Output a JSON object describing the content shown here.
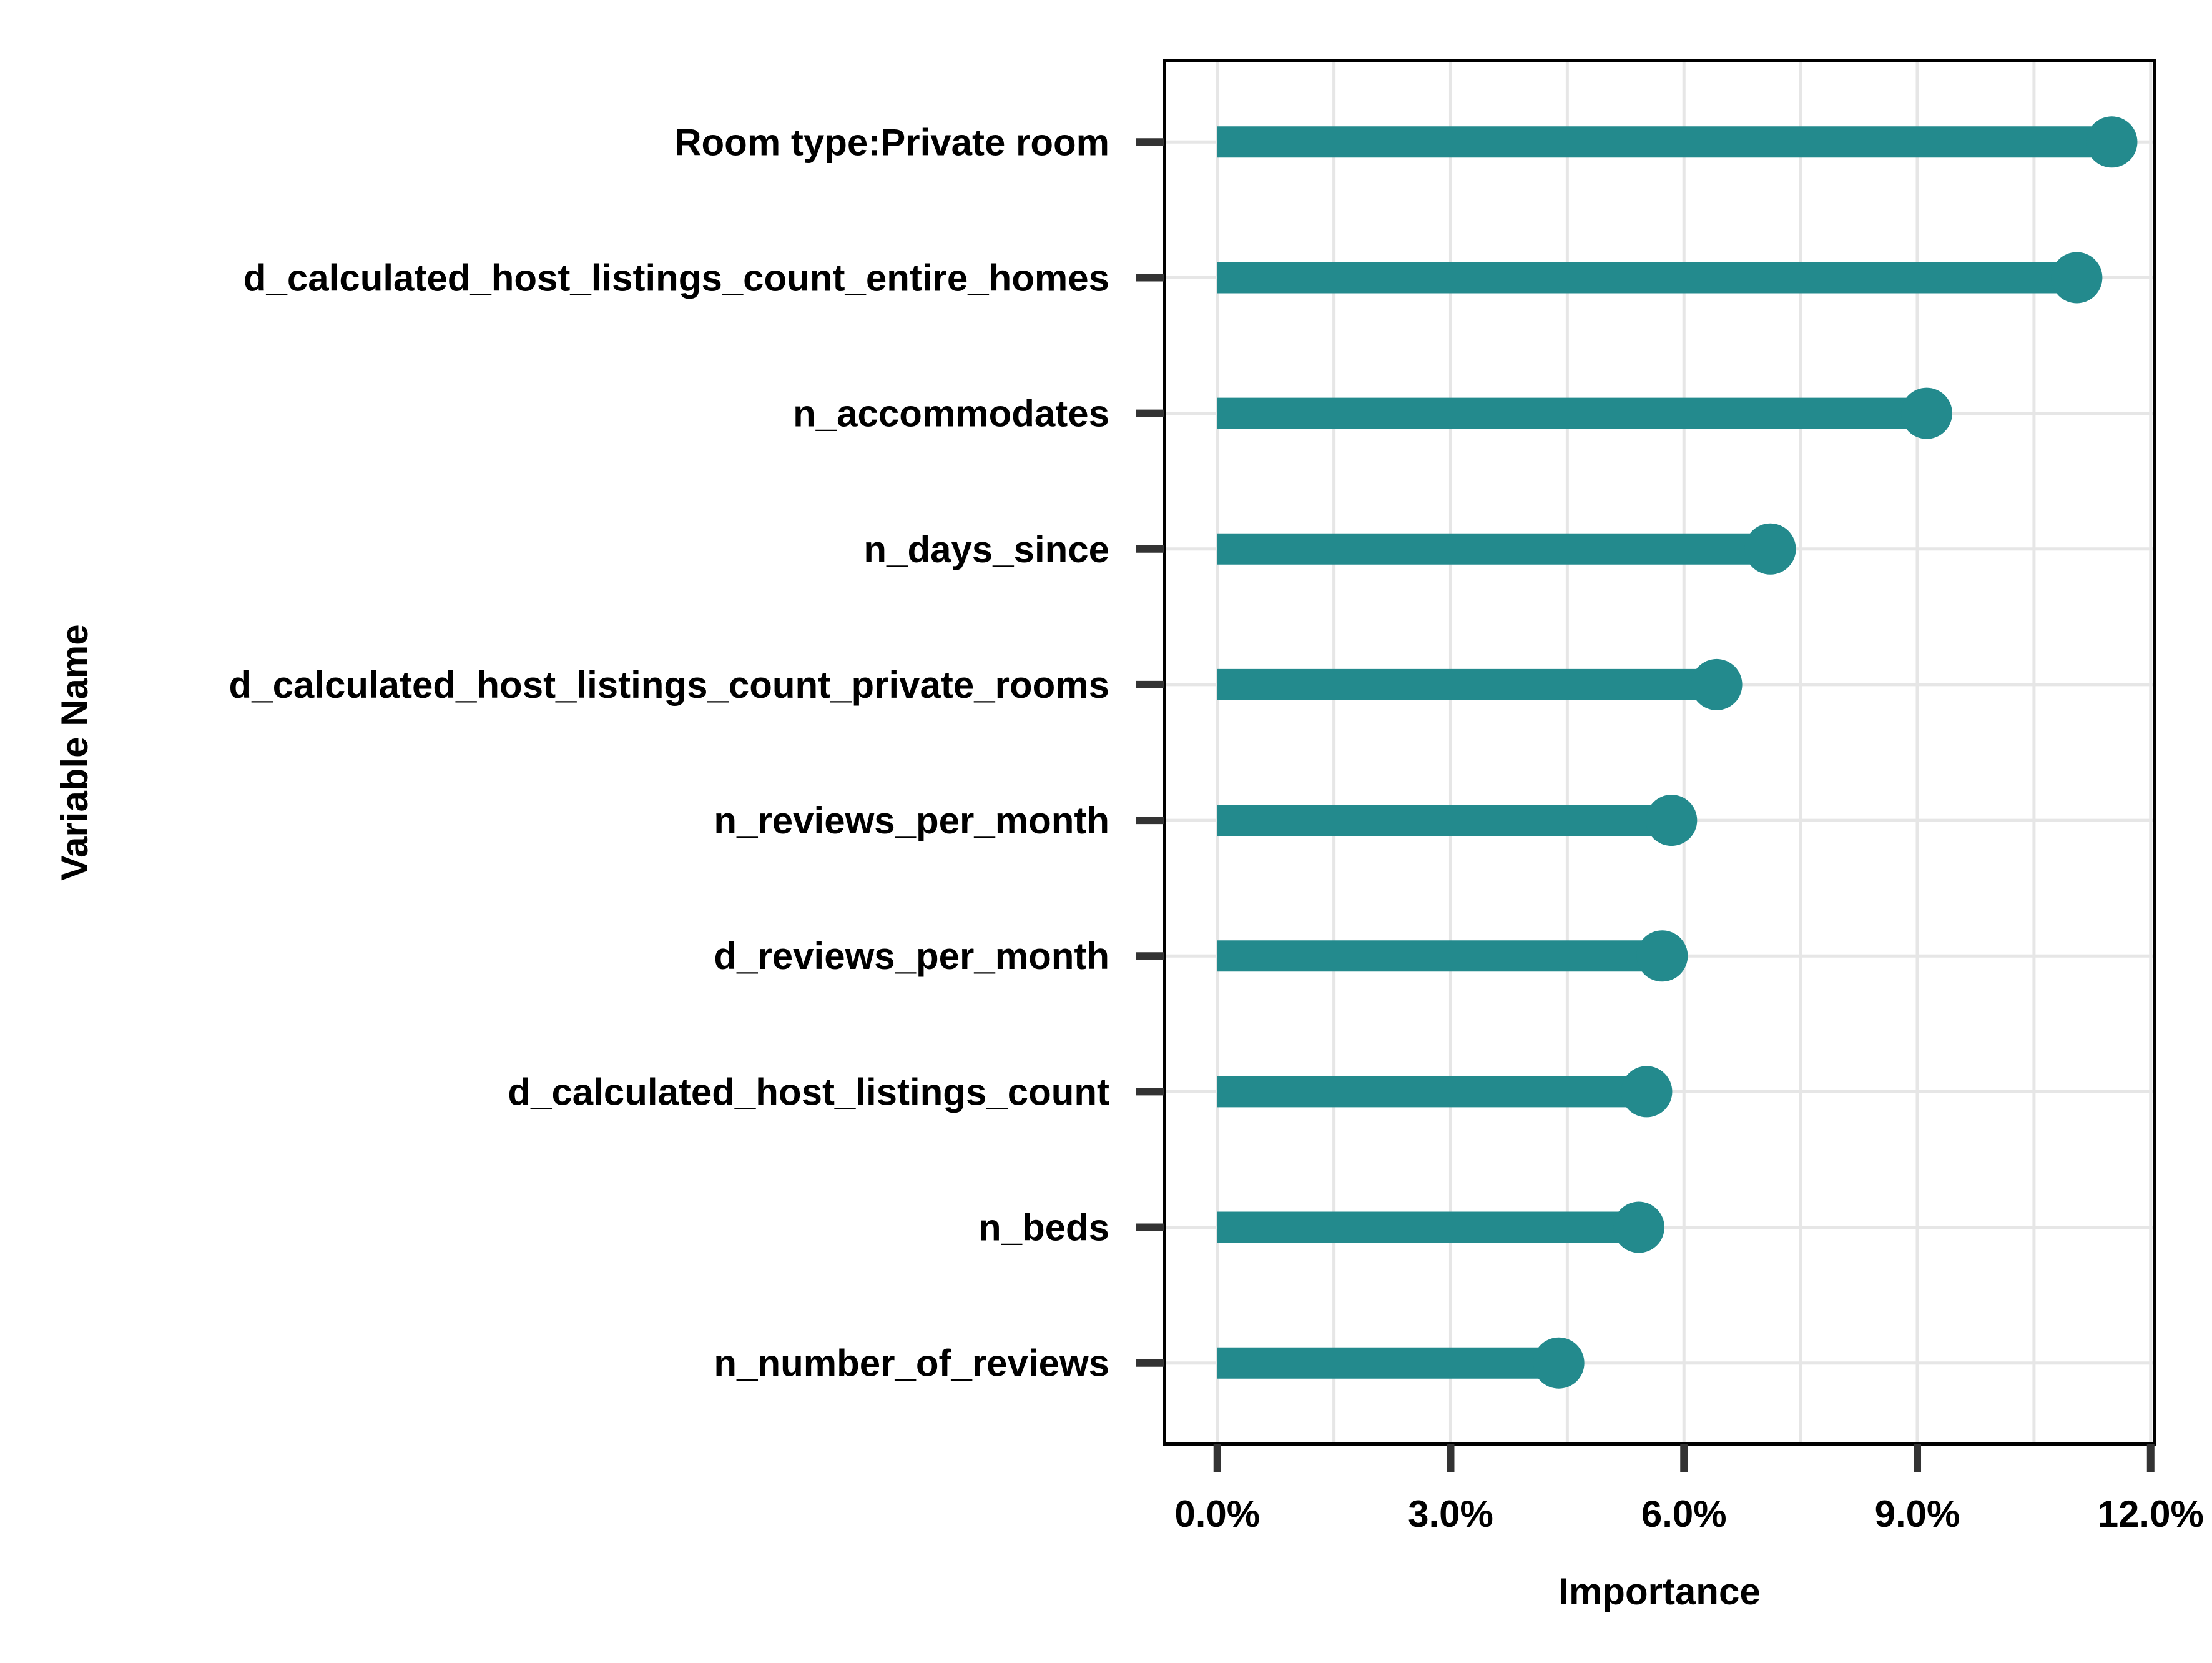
{
  "chart_data": {
    "type": "lollipop",
    "title": "",
    "xlabel": "Importance",
    "ylabel": "Variable Name",
    "xlim": [
      -0.0068,
      0.1205
    ],
    "xticks": [
      0.0,
      0.03,
      0.06,
      0.09,
      0.12
    ],
    "xtick_labels": [
      "0.0%",
      "3.0%",
      "6.0%",
      "9.0%",
      "12.0%"
    ],
    "grid": true,
    "legend": "none",
    "color": "#238A8D",
    "categories": [
      "Room type:Private room",
      "d_calculated_host_listings_count_entire_homes",
      "n_accommodates",
      "n_days_since",
      "d_calculated_host_listings_count_private_rooms",
      "n_reviews_per_month",
      "d_reviews_per_month",
      "d_calculated_host_listings_count",
      "n_beds",
      "n_number_of_reviews"
    ],
    "values": [
      0.115,
      0.1105,
      0.0912,
      0.0711,
      0.0642,
      0.0584,
      0.0572,
      0.0552,
      0.0542,
      0.0439
    ]
  }
}
